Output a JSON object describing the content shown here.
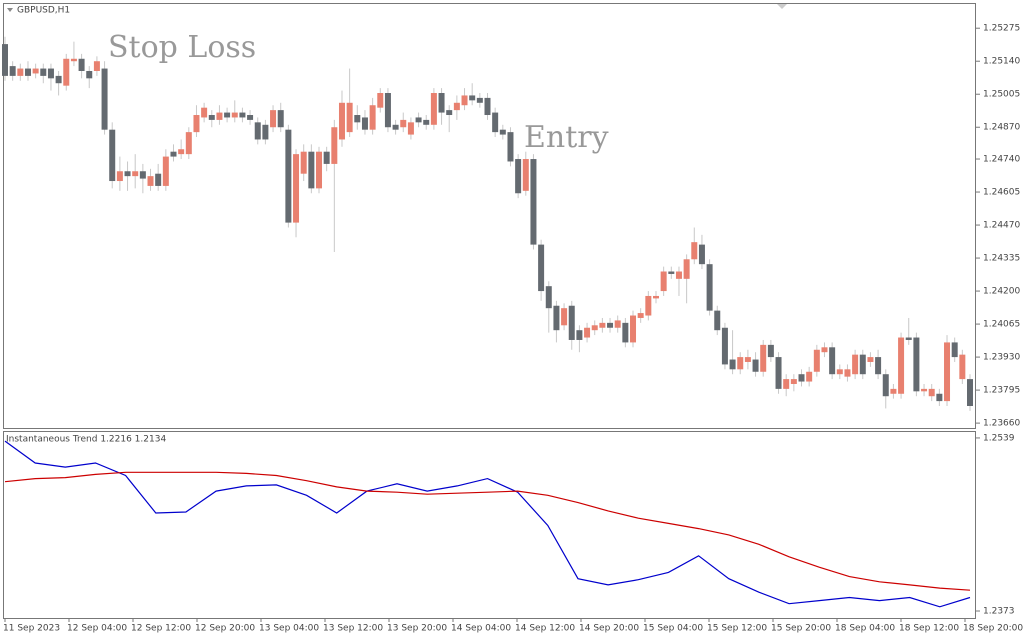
{
  "chart_data": [
    {
      "type": "candlestick",
      "title": "GBPUSD,H1",
      "annotations": [
        "Stop Loss",
        "Entry"
      ],
      "up_color": "#e8806f",
      "down_color": "#646a70",
      "ylim": [
        1.2364,
        1.25374
      ],
      "yticks": [
        1.25275,
        {
          "value": 1.2514,
          "label": "1.25140"
        },
        1.25005,
        {
          "value": 1.2487,
          "label": "1.24870"
        },
        {
          "value": 1.2474,
          "label": "1.24740"
        },
        1.24605,
        {
          "value": 1.2447,
          "label": "1.24470"
        },
        1.24335,
        {
          "value": 1.242,
          "label": "1.24200"
        },
        1.24065,
        {
          "value": 1.2393,
          "label": "1.23930"
        },
        1.23795,
        {
          "value": 1.2366,
          "label": "1.23660"
        }
      ],
      "candles": [
        [
          1.2521,
          1.2524,
          1.2506,
          1.2508
        ],
        [
          1.2512,
          1.2514,
          1.2506,
          1.2508
        ],
        [
          1.2508,
          1.2513,
          1.2506,
          1.2511
        ],
        [
          1.2511,
          1.2514,
          1.2506,
          1.2508
        ],
        [
          1.2509,
          1.2513,
          1.2507,
          1.2511
        ],
        [
          1.2511,
          1.2513,
          1.2505,
          1.2508
        ],
        [
          1.2511,
          1.2513,
          1.2502,
          1.2507
        ],
        [
          1.2508,
          1.251,
          1.25,
          1.2505
        ],
        [
          1.2504,
          1.2517,
          1.2502,
          1.2515
        ],
        [
          1.2514,
          1.2522,
          1.2512,
          1.2515
        ],
        [
          1.2515,
          1.2517,
          1.2507,
          1.251
        ],
        [
          1.251,
          1.2512,
          1.2503,
          1.2507
        ],
        [
          1.251,
          1.2516,
          1.2508,
          1.2514
        ],
        [
          1.2511,
          1.2514,
          1.2484,
          1.2486
        ],
        [
          1.2486,
          1.2489,
          1.2462,
          1.2465
        ],
        [
          1.2465,
          1.2475,
          1.2461,
          1.2469
        ],
        [
          1.2469,
          1.2473,
          1.2461,
          1.2467
        ],
        [
          1.2467,
          1.2476,
          1.2462,
          1.2469
        ],
        [
          1.2469,
          1.2472,
          1.246,
          1.2466
        ],
        [
          1.2463,
          1.247,
          1.2461,
          1.2467
        ],
        [
          1.2468,
          1.2472,
          1.2461,
          1.2463
        ],
        [
          1.2463,
          1.2478,
          1.2461,
          1.2475
        ],
        [
          1.2477,
          1.248,
          1.2473,
          1.2475
        ],
        [
          1.2476,
          1.2482,
          1.2474,
          1.2478
        ],
        [
          1.2476,
          1.2487,
          1.2474,
          1.2485
        ],
        [
          1.2485,
          1.2496,
          1.2483,
          1.2492
        ],
        [
          1.2491,
          1.2497,
          1.2489,
          1.2495
        ],
        [
          1.2492,
          1.2494,
          1.2487,
          1.249
        ],
        [
          1.249,
          1.2496,
          1.2488,
          1.2493
        ],
        [
          1.2493,
          1.2495,
          1.2489,
          1.2491
        ],
        [
          1.2491,
          1.2498,
          1.2489,
          1.2493
        ],
        [
          1.2493,
          1.2495,
          1.2489,
          1.2491
        ],
        [
          1.2492,
          1.2494,
          1.2488,
          1.249
        ],
        [
          1.2489,
          1.2491,
          1.248,
          1.2482
        ],
        [
          1.2488,
          1.249,
          1.248,
          1.2482
        ],
        [
          1.2487,
          1.2496,
          1.2485,
          1.2494
        ],
        [
          1.2494,
          1.2497,
          1.2485,
          1.2487
        ],
        [
          1.2486,
          1.2488,
          1.2446,
          1.2448
        ],
        [
          1.2448,
          1.2478,
          1.2442,
          1.2476
        ],
        [
          1.2468,
          1.248,
          1.2465,
          1.2477
        ],
        [
          1.2477,
          1.248,
          1.246,
          1.2462
        ],
        [
          1.2462,
          1.2479,
          1.246,
          1.2477
        ],
        [
          1.2477,
          1.2479,
          1.2469,
          1.2472
        ],
        [
          1.2472,
          1.249,
          1.2436,
          1.2487
        ],
        [
          1.2482,
          1.2502,
          1.2479,
          1.2497
        ],
        [
          1.2485,
          1.2511,
          1.2483,
          1.2497
        ],
        [
          1.2492,
          1.2496,
          1.2486,
          1.2489
        ],
        [
          1.2491,
          1.2494,
          1.2484,
          1.2486
        ],
        [
          1.2486,
          1.2499,
          1.2484,
          1.2496
        ],
        [
          1.2495,
          1.2503,
          1.2493,
          1.2501
        ],
        [
          1.2501,
          1.2503,
          1.2485,
          1.2487
        ],
        [
          1.2488,
          1.249,
          1.2484,
          1.2486
        ],
        [
          1.2487,
          1.2493,
          1.2485,
          1.249
        ],
        [
          1.2484,
          1.2491,
          1.2482,
          1.2489
        ],
        [
          1.2491,
          1.2493,
          1.2487,
          1.2489
        ],
        [
          1.249,
          1.2492,
          1.2486,
          1.2488
        ],
        [
          1.2488,
          1.2503,
          1.2486,
          1.2501
        ],
        [
          1.2501,
          1.2503,
          1.2488,
          1.2493
        ],
        [
          1.2494,
          1.2496,
          1.2485,
          1.2492
        ],
        [
          1.2494,
          1.25,
          1.249,
          1.2497
        ],
        [
          1.2496,
          1.2503,
          1.2494,
          1.25
        ],
        [
          1.25,
          1.2505,
          1.2496,
          1.2498
        ],
        [
          1.2499,
          1.2501,
          1.2495,
          1.2497
        ],
        [
          1.2499,
          1.2501,
          1.249,
          1.2492
        ],
        [
          1.2493,
          1.2495,
          1.2483,
          1.2485
        ],
        [
          1.2486,
          1.2488,
          1.2482,
          1.2484
        ],
        [
          1.2485,
          1.2487,
          1.2471,
          1.2473
        ],
        [
          1.2474,
          1.2476,
          1.2458,
          1.246
        ],
        [
          1.2461,
          1.2477,
          1.2459,
          1.2474
        ],
        [
          1.2474,
          1.2476,
          1.2437,
          1.2439
        ],
        [
          1.2439,
          1.2441,
          1.2416,
          1.242
        ],
        [
          1.2422,
          1.2424,
          1.2403,
          1.2413
        ],
        [
          1.2414,
          1.2416,
          1.2399,
          1.2404
        ],
        [
          1.2406,
          1.2415,
          1.2404,
          1.2413
        ],
        [
          1.2414,
          1.2416,
          1.2396,
          1.24
        ],
        [
          1.2404,
          1.2406,
          1.2395,
          1.24
        ],
        [
          1.2401,
          1.2407,
          1.2399,
          1.2405
        ],
        [
          1.2404,
          1.2408,
          1.2402,
          1.2406
        ],
        [
          1.2405,
          1.2409,
          1.2403,
          1.2407
        ],
        [
          1.2407,
          1.2409,
          1.2403,
          1.2405
        ],
        [
          1.2405,
          1.241,
          1.2403,
          1.2408
        ],
        [
          1.2407,
          1.2409,
          1.2397,
          1.2399
        ],
        [
          1.2399,
          1.2412,
          1.2397,
          1.241
        ],
        [
          1.2409,
          1.2413,
          1.2407,
          1.2411
        ],
        [
          1.241,
          1.242,
          1.2408,
          1.2418
        ],
        [
          1.2417,
          1.242,
          1.2415,
          1.2418
        ],
        [
          1.242,
          1.243,
          1.2418,
          1.2428
        ],
        [
          1.2428,
          1.243,
          1.2425,
          1.2427
        ],
        [
          1.2425,
          1.243,
          1.2418,
          1.2428
        ],
        [
          1.2425,
          1.2435,
          1.2415,
          1.2433
        ],
        [
          1.2433,
          1.2446,
          1.2431,
          1.244
        ],
        [
          1.2439,
          1.2443,
          1.2429,
          1.2431
        ],
        [
          1.2431,
          1.2433,
          1.241,
          1.2412
        ],
        [
          1.2412,
          1.2414,
          1.2402,
          1.2404
        ],
        [
          1.2405,
          1.2407,
          1.2388,
          1.239
        ],
        [
          1.2392,
          1.2404,
          1.2386,
          1.2388
        ],
        [
          1.2388,
          1.2395,
          1.2386,
          1.2393
        ],
        [
          1.2391,
          1.2396,
          1.2388,
          1.2393
        ],
        [
          1.2392,
          1.2395,
          1.2385,
          1.2387
        ],
        [
          1.2387,
          1.24,
          1.2385,
          1.2398
        ],
        [
          1.2398,
          1.24,
          1.2391,
          1.2393
        ],
        [
          1.2393,
          1.2395,
          1.2378,
          1.238
        ],
        [
          1.238,
          1.2386,
          1.2377,
          1.2384
        ],
        [
          1.2382,
          1.2386,
          1.2379,
          1.2384
        ],
        [
          1.2386,
          1.2388,
          1.2381,
          1.2383
        ],
        [
          1.2383,
          1.2389,
          1.2381,
          1.2387
        ],
        [
          1.2387,
          1.2398,
          1.2385,
          1.2396
        ],
        [
          1.2395,
          1.2399,
          1.2393,
          1.2397
        ],
        [
          1.2397,
          1.2399,
          1.2384,
          1.2386
        ],
        [
          1.2386,
          1.239,
          1.2384,
          1.2388
        ],
        [
          1.2385,
          1.239,
          1.2383,
          1.2388
        ],
        [
          1.2386,
          1.2396,
          1.2384,
          1.2394
        ],
        [
          1.2394,
          1.2396,
          1.2384,
          1.2386
        ],
        [
          1.2391,
          1.2395,
          1.2389,
          1.2393
        ],
        [
          1.2393,
          1.2396,
          1.2384,
          1.2386
        ],
        [
          1.2386,
          1.2388,
          1.2372,
          1.2377
        ],
        [
          1.2378,
          1.2382,
          1.2376,
          1.238
        ],
        [
          1.2378,
          1.2403,
          1.2376,
          1.2401
        ],
        [
          1.2401,
          1.2409,
          1.2398,
          1.24
        ],
        [
          1.2401,
          1.2403,
          1.2377,
          1.2379
        ],
        [
          1.2379,
          1.2382,
          1.2377,
          1.238
        ],
        [
          1.2377,
          1.2382,
          1.2375,
          1.238
        ],
        [
          1.2378,
          1.238,
          1.2373,
          1.2375
        ],
        [
          1.2375,
          1.2402,
          1.2373,
          1.2399
        ],
        [
          1.2399,
          1.2401,
          1.2391,
          1.2393
        ],
        [
          1.2384,
          1.2396,
          1.2382,
          1.2394
        ],
        [
          1.2384,
          1.2386,
          1.2371,
          1.2373
        ]
      ]
    },
    {
      "type": "line",
      "title": "Instantaneous Trend 1.2216 1.2134",
      "ylim": [
        1.23663,
        1.25447
      ],
      "yticks": [
        1.2539,
        1.2373
      ],
      "x_labels": [
        "11 Sep 2023",
        "12 Sep 04:00",
        "12 Sep 12:00",
        "12 Sep 20:00",
        "13 Sep 04:00",
        "13 Sep 12:00",
        "13 Sep 20:00",
        "14 Sep 04:00",
        "14 Sep 12:00",
        "14 Sep 20:00",
        "15 Sep 04:00",
        "15 Sep 12:00",
        "15 Sep 20:00",
        "18 Sep 04:00",
        "18 Sep 12:00",
        "18 Sep 20:00"
      ],
      "series": [
        {
          "color": "#0000cc",
          "values": [
            1.2536,
            1.2515,
            1.2511,
            1.2515,
            1.2503,
            1.2467,
            1.2468,
            1.2488,
            1.2493,
            1.2494,
            1.2484,
            1.2467,
            1.2488,
            1.2495,
            1.2488,
            1.2493,
            1.25,
            1.2487,
            1.2455,
            1.2404,
            1.2398,
            1.2403,
            1.241,
            1.2426,
            1.2404,
            1.2391,
            1.238,
            1.2383,
            1.2386,
            1.2383,
            1.2386,
            1.2377,
            1.2386
          ]
        },
        {
          "color": "#cc0000",
          "values": [
            1.2497,
            1.25,
            1.2501,
            1.2504,
            1.2506,
            1.2506,
            1.2506,
            1.2506,
            1.2505,
            1.2503,
            1.2498,
            1.2492,
            1.2488,
            1.2487,
            1.2485,
            1.2486,
            1.2487,
            1.2488,
            1.2484,
            1.2477,
            1.2469,
            1.2462,
            1.2457,
            1.2452,
            1.2446,
            1.2437,
            1.2425,
            1.2415,
            1.2406,
            1.2401,
            1.2398,
            1.2395,
            1.2393
          ]
        }
      ]
    }
  ]
}
